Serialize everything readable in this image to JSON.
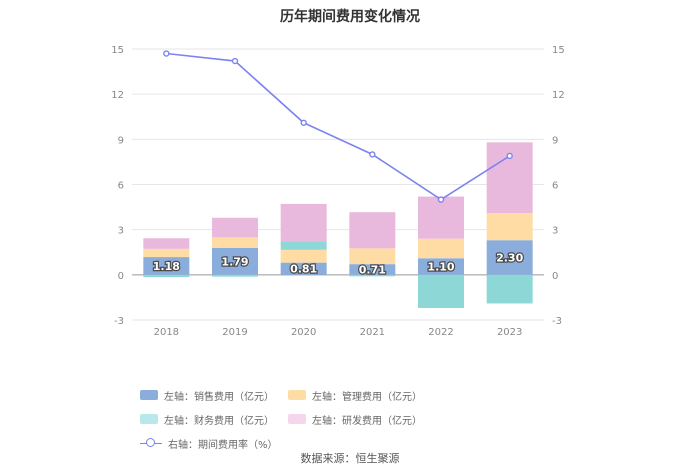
{
  "chart_data": {
    "type": "bar",
    "title": "历年期间费用变化情况",
    "categories": [
      "2018",
      "2019",
      "2020",
      "2021",
      "2022",
      "2023"
    ],
    "left_axis": {
      "ticks": [
        "-3",
        "0",
        "3",
        "6",
        "9",
        "12",
        "15"
      ],
      "ylim": [
        -3,
        15
      ]
    },
    "right_axis": {
      "ticks": [
        "-3",
        "0",
        "3",
        "6",
        "9",
        "12",
        "15"
      ],
      "ylim": [
        -3,
        15
      ]
    },
    "stacked": true,
    "series": [
      {
        "name": "左轴：销售费用（亿元）",
        "color": "#8aaddc",
        "values": [
          1.18,
          1.79,
          0.81,
          0.71,
          1.1,
          2.3
        ],
        "labels": [
          "1.18",
          "1.79",
          "0.81",
          "0.71",
          "1.10",
          "2.30"
        ]
      },
      {
        "name": "左轴：管理费用（亿元）",
        "color": "#fedca4",
        "values": [
          0.55,
          0.7,
          0.85,
          1.05,
          1.3,
          1.8
        ]
      },
      {
        "name": "左轴：财务费用（亿元）",
        "color": "#8ed7d7",
        "values": [
          -0.15,
          -0.12,
          0.55,
          -0.1,
          -2.2,
          -1.9
        ]
      },
      {
        "name": "左轴：研发费用（亿元）",
        "color": "#e8b9dc",
        "values": [
          0.7,
          1.3,
          2.5,
          2.4,
          2.8,
          4.7
        ]
      }
    ],
    "line_series": {
      "name": "右轴：期间费用率（%）",
      "color": "#7b84ee",
      "values": [
        14.7,
        14.2,
        10.1,
        8.0,
        5.0,
        7.9
      ]
    },
    "legend_position": "bottom"
  },
  "source": "数据来源：恒生聚源"
}
